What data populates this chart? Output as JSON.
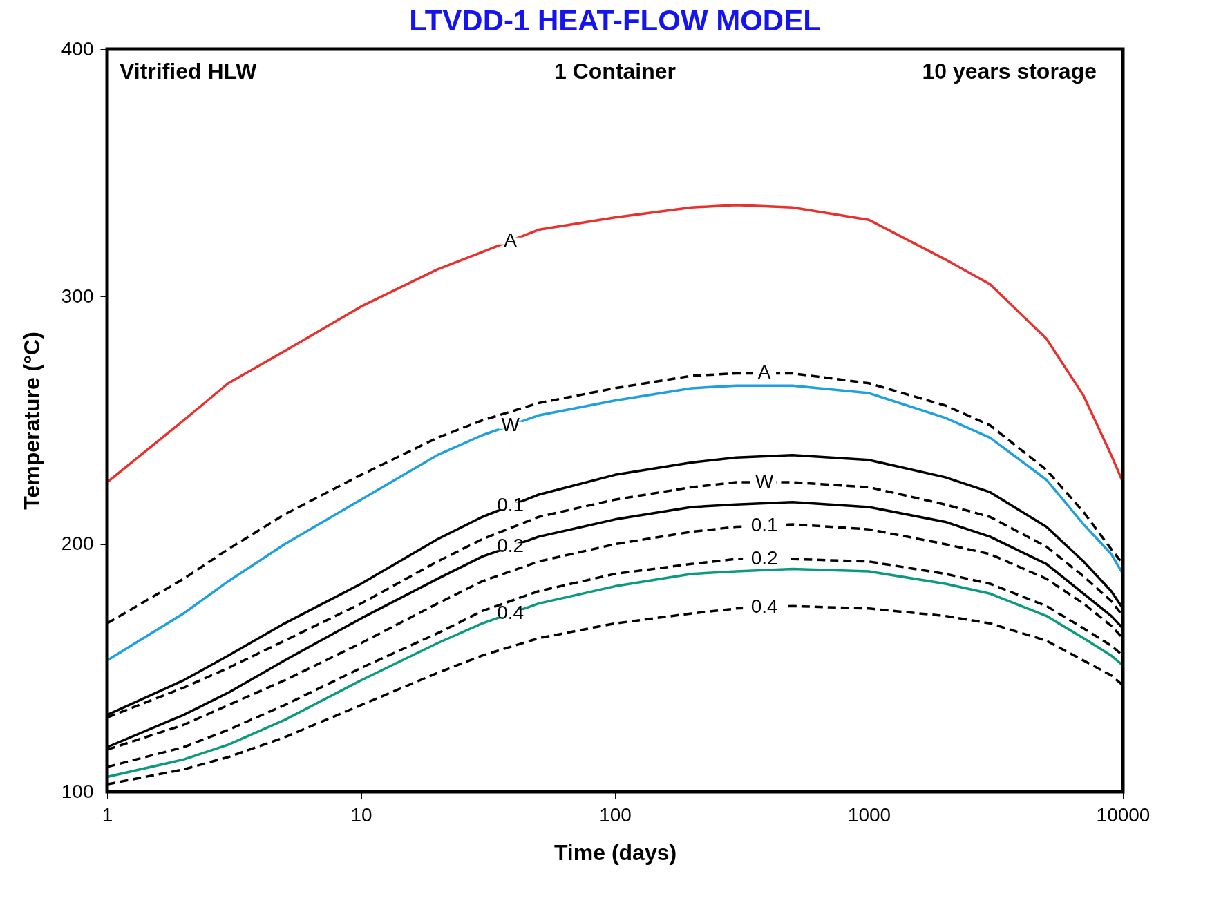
{
  "chart_data": {
    "type": "line",
    "title": "LTVDD-1  HEAT-FLOW MODEL",
    "xlabel": "Time (days)",
    "ylabel": "Temperature (°C)",
    "annotations": [
      "Vitrified HLW",
      "1 Container",
      "10 years storage"
    ],
    "log": "x",
    "xlim": [
      1,
      10000
    ],
    "xticks": [
      1,
      10,
      100,
      {
        "value": 1000,
        "label": "1000"
      },
      {
        "value": 10000,
        "label": "10000"
      }
    ],
    "ylim": [
      100,
      400
    ],
    "yticks": [
      100,
      200,
      300,
      400
    ],
    "grid": false,
    "legend": false,
    "marker": "none",
    "x": [
      1,
      2,
      3,
      5,
      10,
      20,
      30,
      50,
      100,
      200,
      300,
      500,
      1000,
      2000,
      3000,
      5000,
      7000,
      9000,
      10000
    ],
    "series": [
      {
        "name": "A",
        "color": "#e8312d",
        "line_style": "solid",
        "values": [
          225,
          250,
          265,
          278,
          296,
          311,
          318,
          327,
          332,
          336,
          337,
          336,
          331,
          315,
          305,
          283,
          260,
          236,
          225
        ]
      },
      {
        "name": "A",
        "color": "#000000",
        "line_style": "dashed",
        "values": [
          168,
          186,
          198,
          212,
          228,
          243,
          250,
          257,
          263,
          268,
          269,
          269,
          265,
          256,
          248,
          230,
          213,
          198,
          192
        ]
      },
      {
        "name": "W",
        "color": "#1ea0e0",
        "line_style": "solid",
        "values": [
          153,
          172,
          185,
          200,
          218,
          236,
          244,
          252,
          258,
          263,
          264,
          264,
          261,
          251,
          243,
          226,
          208,
          196,
          188
        ]
      },
      {
        "name": "0.1",
        "color": "#000000",
        "line_style": "solid",
        "values": [
          131,
          145,
          155,
          168,
          184,
          202,
          211,
          220,
          228,
          233,
          235,
          236,
          234,
          227,
          221,
          207,
          193,
          181,
          174
        ]
      },
      {
        "name": "W",
        "color": "#000000",
        "line_style": "dashed",
        "values": [
          130,
          142,
          150,
          161,
          176,
          193,
          202,
          211,
          218,
          223,
          225,
          225,
          223,
          216,
          211,
          199,
          187,
          177,
          171
        ]
      },
      {
        "name": "0.2",
        "color": "#000000",
        "line_style": "solid",
        "values": [
          118,
          131,
          140,
          153,
          170,
          186,
          195,
          203,
          210,
          215,
          216,
          217,
          215,
          209,
          203,
          192,
          180,
          171,
          166
        ]
      },
      {
        "name": "0.1",
        "color": "#000000",
        "line_style": "dashed",
        "values": [
          117,
          127,
          135,
          145,
          160,
          176,
          185,
          193,
          200,
          205,
          207,
          208,
          206,
          200,
          196,
          186,
          176,
          167,
          162
        ]
      },
      {
        "name": "0.2",
        "color": "#000000",
        "line_style": "dashed",
        "values": [
          110,
          118,
          125,
          135,
          150,
          164,
          173,
          181,
          188,
          192,
          194,
          194,
          193,
          188,
          184,
          175,
          166,
          159,
          155
        ]
      },
      {
        "name": "0.4",
        "color": "#0a9a80",
        "line_style": "solid",
        "values": [
          106,
          113,
          119,
          129,
          145,
          160,
          168,
          176,
          183,
          188,
          189,
          190,
          189,
          184,
          180,
          171,
          162,
          155,
          151
        ]
      },
      {
        "name": "0.4",
        "color": "#000000",
        "line_style": "dashed",
        "values": [
          103,
          109,
          114,
          122,
          135,
          148,
          155,
          162,
          168,
          172,
          174,
          175,
          174,
          171,
          168,
          161,
          153,
          147,
          143
        ]
      }
    ]
  }
}
